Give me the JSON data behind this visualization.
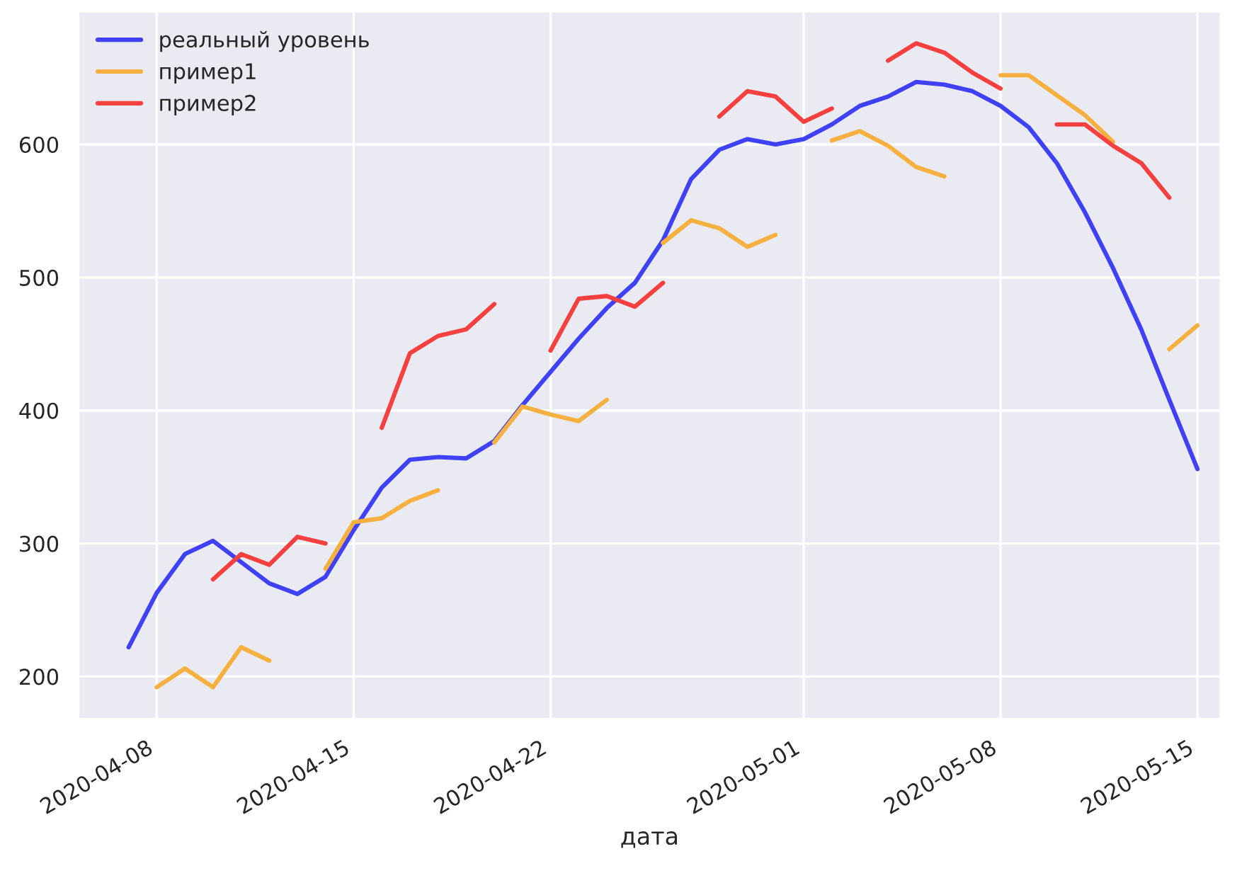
{
  "chart_data": {
    "type": "line",
    "xlabel": "дата",
    "x": [
      "2020-04-07",
      "2020-04-08",
      "2020-04-09",
      "2020-04-10",
      "2020-04-11",
      "2020-04-12",
      "2020-04-13",
      "2020-04-14",
      "2020-04-15",
      "2020-04-16",
      "2020-04-17",
      "2020-04-18",
      "2020-04-19",
      "2020-04-20",
      "2020-04-21",
      "2020-04-22",
      "2020-04-23",
      "2020-04-24",
      "2020-04-25",
      "2020-04-26",
      "2020-04-27",
      "2020-04-28",
      "2020-04-29",
      "2020-04-30",
      "2020-05-01",
      "2020-05-02",
      "2020-05-03",
      "2020-05-04",
      "2020-05-05",
      "2020-05-06",
      "2020-05-07",
      "2020-05-08",
      "2020-05-09",
      "2020-05-10",
      "2020-05-11",
      "2020-05-12",
      "2020-05-13",
      "2020-05-14",
      "2020-05-15"
    ],
    "series": [
      {
        "name": "реальный уровень",
        "color": "#4040f5",
        "values": [
          222,
          263,
          292,
          302,
          286,
          270,
          262,
          275,
          310,
          342,
          363,
          365,
          364,
          377,
          404,
          429,
          454,
          477,
          496,
          528,
          574,
          596,
          604,
          600,
          604,
          615,
          629,
          636,
          647,
          645,
          640,
          629,
          613,
          586,
          549,
          507,
          461,
          408,
          356
        ]
      },
      {
        "name": "пример1",
        "color": "#f5b040",
        "values": [
          null,
          192,
          206,
          192,
          222,
          212,
          null,
          281,
          316,
          319,
          332,
          340,
          null,
          376,
          403,
          397,
          392,
          408,
          null,
          526,
          543,
          537,
          523,
          532,
          null,
          603,
          610,
          599,
          583,
          576,
          null,
          652,
          652,
          637,
          622,
          602,
          null,
          446,
          464
        ]
      },
      {
        "name": "пример2",
        "color": "#f54040",
        "values": [
          null,
          null,
          null,
          273,
          292,
          284,
          305,
          300,
          null,
          387,
          443,
          456,
          461,
          480,
          null,
          445,
          484,
          486,
          478,
          496,
          null,
          621,
          640,
          636,
          617,
          627,
          null,
          663,
          676,
          669,
          654,
          642,
          null,
          615,
          615,
          599,
          586,
          560,
          null
        ]
      }
    ],
    "xlim": [
      "2020-04-05T05:00",
      "2020-05-15T20:00"
    ],
    "xticks": [
      "2020-04-08",
      "2020-04-15",
      "2020-04-22",
      "2020-05-01",
      "2020-05-08",
      "2020-05-15"
    ],
    "ylim": [
      168,
      700
    ],
    "yticks": [
      200,
      300,
      400,
      500,
      600
    ],
    "grid": true,
    "legend": "top left",
    "line_style": "solid"
  }
}
